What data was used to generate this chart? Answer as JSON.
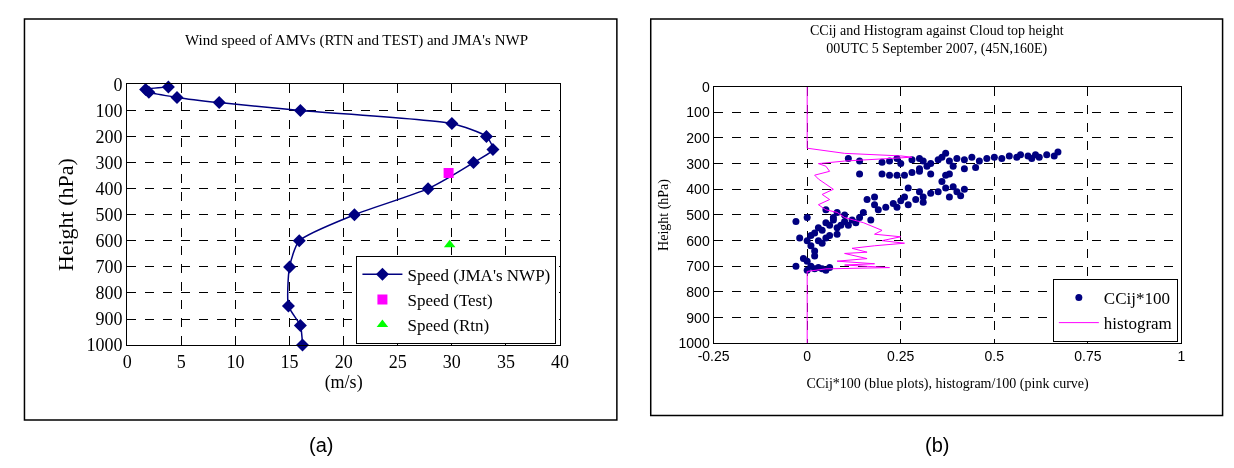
{
  "chart_data": [
    {
      "type": "scatter",
      "title": "Wind speed of AMVs (RTN and TEST) and JMA's NWP",
      "xlabel": "(m/s)",
      "ylabel": "Height (hPa)",
      "xlim": [
        0,
        40
      ],
      "xticks": [
        0,
        5,
        10,
        15,
        20,
        25,
        30,
        35,
        40
      ],
      "ylim": [
        1000,
        0
      ],
      "yticks": [
        0,
        100,
        200,
        300,
        400,
        500,
        600,
        700,
        800,
        900,
        1000
      ],
      "grid": true,
      "legend": "bottom right",
      "annotations": [
        "(a)"
      ],
      "series": [
        {
          "name": "Speed (JMA's NWP)",
          "type": "line",
          "marker": "diamond",
          "color": "#000080",
          "x": [
            3.8,
            1.7,
            2,
            4.6,
            8.5,
            16,
            30,
            33.2,
            33.8,
            32,
            27.8,
            21,
            15.9,
            15,
            14.9,
            16,
            16.2
          ],
          "values": [
            10,
            20,
            30,
            50,
            70,
            100,
            150,
            200,
            250,
            300,
            400,
            500,
            600,
            700,
            850,
            925,
            1000
          ]
        },
        {
          "name": "Speed (Test)",
          "type": "scatter",
          "marker": "square",
          "color": "#ff00ff",
          "x": [
            29.7
          ],
          "values": [
            340
          ]
        },
        {
          "name": "Speed (Rtn)",
          "type": "scatter",
          "marker": "triangle",
          "color": "#00ff00",
          "x": [
            29.8
          ],
          "values": [
            615
          ]
        }
      ]
    },
    {
      "type": "scatter",
      "title": "CCij and Histogram against Cloud top height",
      "subtitle": "00UTC 5 September 2007, (45N,160E)",
      "xlabel": "CCij*100 (blue plots), histogram/100 (pink curve)",
      "ylabel": "Height (hPa)",
      "xlim": [
        -0.25,
        1
      ],
      "xticks": [
        -0.25,
        0,
        0.25,
        0.5,
        0.75,
        1
      ],
      "ylim": [
        1000,
        0
      ],
      "yticks": [
        0,
        100,
        200,
        300,
        400,
        500,
        600,
        700,
        800,
        900,
        1000
      ],
      "grid": true,
      "legend": "bottom right",
      "annotations": [
        "(b)"
      ],
      "series": [
        {
          "name": "CCij*100",
          "type": "scatter",
          "marker": "circle",
          "color": "#000080",
          "x": [
            0.11,
            0.14,
            0.2,
            0.22,
            0.24,
            0.25,
            0.28,
            0.3,
            0.31,
            0.33,
            0.35,
            0.36,
            0.37,
            0.38,
            0.4,
            0.42,
            0.44,
            0.46,
            0.48,
            0.5,
            0.52,
            0.54,
            0.56,
            0.57,
            0.59,
            0.6,
            0.61,
            0.62,
            0.64,
            0.67,
            0.66,
            0.45,
            0.42,
            0.39,
            0.32,
            0.3,
            0.14,
            0.2,
            0.22,
            0.24,
            0.26,
            0.28,
            0.3,
            0.33,
            0.37,
            0.38,
            0.36,
            0.37,
            0.39,
            0.42,
            0.4,
            0.41,
            0.38,
            0.35,
            0.33,
            0.31,
            0.3,
            0.27,
            0.29,
            0.31,
            0.26,
            0.25,
            0.23,
            0.21,
            0.24,
            0.27,
            0.18,
            0.16,
            0.19,
            0.15,
            0.17,
            0.14,
            0.12,
            0.1,
            0.09,
            0.08,
            0.07,
            0.06,
            0.05,
            0.04,
            0.03,
            0.02,
            0.01,
            0.0,
            -0.02,
            0.01,
            0.02,
            0.03,
            0.05,
            0.06,
            0.08,
            0.04,
            0.02,
            0.0,
            -0.01,
            -0.03,
            0.01,
            0.02,
            0.03,
            0.04,
            0.05,
            0.06,
            0.0,
            -0.03,
            0.0,
            0.05,
            0.11,
            0.13,
            0.1,
            0.07,
            0.08,
            0.18
          ],
          "values": [
            280,
            290,
            295,
            290,
            280,
            300,
            285,
            280,
            290,
            300,
            285,
            275,
            260,
            290,
            280,
            285,
            275,
            290,
            280,
            275,
            280,
            270,
            275,
            265,
            270,
            280,
            265,
            275,
            265,
            255,
            270,
            315,
            320,
            310,
            310,
            320,
            340,
            340,
            345,
            345,
            345,
            335,
            330,
            340,
            345,
            340,
            370,
            395,
            390,
            400,
            410,
            425,
            430,
            410,
            415,
            430,
            410,
            395,
            440,
            450,
            430,
            445,
            455,
            470,
            470,
            460,
            460,
            440,
            480,
            490,
            520,
            510,
            520,
            525,
            540,
            550,
            520,
            540,
            530,
            560,
            550,
            570,
            580,
            600,
            590,
            620,
            640,
            600,
            590,
            580,
            575,
            610,
            660,
            680,
            670,
            700,
            700,
            710,
            705,
            710,
            715,
            705,
            715,
            525,
            510,
            480,
            540,
            530,
            500,
            510,
            490,
            430
          ]
        },
        {
          "name": "histogram",
          "type": "line",
          "marker": "none",
          "color": "#ff00ff",
          "x": [
            0,
            0,
            0.1,
            0.25,
            0.28,
            0.1,
            0.03,
            0.05,
            0.06,
            0.02,
            0.03,
            0.05,
            0.07,
            0.04,
            0.06,
            0.03,
            0.05,
            0.08,
            0.1,
            0.15,
            0.2,
            0.18,
            0.25,
            0.2,
            0.26,
            0.18,
            0.12,
            0.16,
            0.1,
            0.16,
            0.08,
            0.18,
            0.1,
            0.22,
            0.05,
            0,
            0
          ],
          "values": [
            0,
            240,
            260,
            270,
            275,
            290,
            300,
            310,
            330,
            345,
            360,
            380,
            400,
            420,
            440,
            460,
            480,
            490,
            510,
            530,
            560,
            575,
            585,
            600,
            610,
            620,
            630,
            645,
            650,
            670,
            680,
            690,
            695,
            705,
            710,
            720,
            1000
          ]
        }
      ]
    }
  ]
}
